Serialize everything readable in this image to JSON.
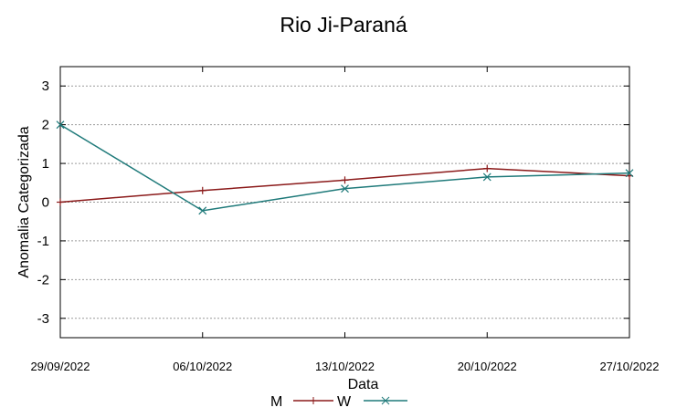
{
  "chart_data": {
    "type": "line",
    "title": "Rio Ji-Paraná",
    "xlabel": "Data",
    "ylabel": "Anomalia Categorizada",
    "categories": [
      "29/09/2022",
      "06/10/2022",
      "13/10/2022",
      "20/10/2022",
      "27/10/2022"
    ],
    "ylim": [
      -3.5,
      3.5
    ],
    "yticks": [
      3,
      2,
      1,
      0,
      -1,
      -2,
      -3
    ],
    "ytick_labels": [
      "3",
      "2",
      "1",
      "0",
      "-1",
      "-2",
      "-3"
    ],
    "grid": true,
    "legend_position": "bottom",
    "series": [
      {
        "name": "M",
        "color": "#8b1a1a",
        "marker": "+",
        "values": [
          0.0,
          0.3,
          0.57,
          0.87,
          0.68
        ]
      },
      {
        "name": "W",
        "color": "#1f7a7a",
        "marker": "x",
        "values": [
          2.0,
          -0.22,
          0.35,
          0.65,
          0.75
        ]
      }
    ]
  }
}
